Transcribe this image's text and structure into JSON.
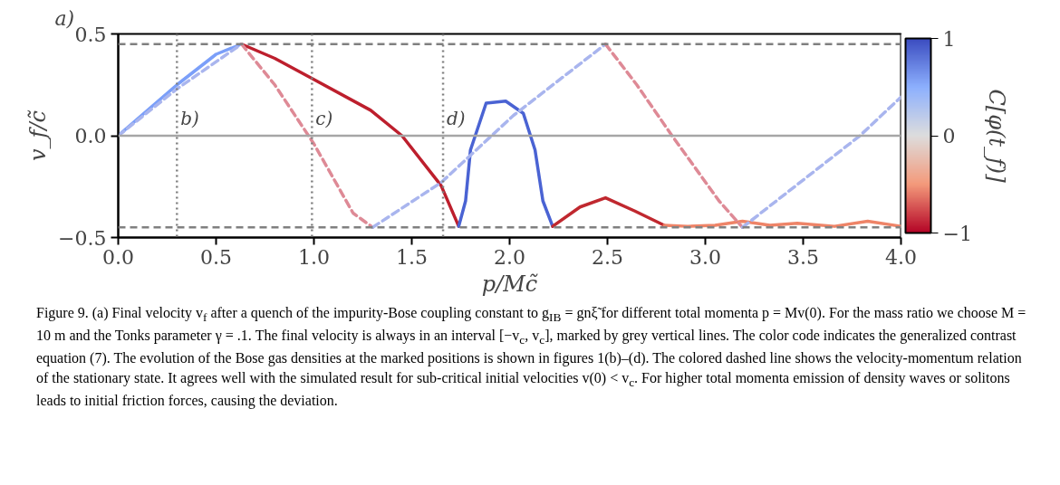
{
  "chart_data": {
    "type": "line",
    "title": "a)",
    "xlabel": "p/Mc̃",
    "ylabel": "v_f/c̃",
    "clabel": "C[φ(t_f)]",
    "xlim": [
      0,
      4
    ],
    "ylim": [
      -0.5,
      0.5
    ],
    "xticks": [
      {
        "value": 0,
        "label": "0.0"
      },
      0.5,
      {
        "value": 1,
        "label": "1.0"
      },
      1.5,
      {
        "value": 2,
        "label": "2.0"
      },
      2.5,
      {
        "value": 3,
        "label": "3.0"
      },
      3.5,
      {
        "value": 4,
        "label": "4.0"
      }
    ],
    "yticks": [
      {
        "value": -0.5,
        "label": "−0.5"
      },
      {
        "value": 0,
        "label": "0.0"
      },
      0.5
    ],
    "clim": [
      -1,
      1
    ],
    "cticks": [
      {
        "value": -1,
        "label": "−1"
      },
      0,
      1
    ],
    "grid": false,
    "series": [
      {
        "line_style": "solid",
        "color": "#7b9ff9",
        "x": [
          0,
          0.3,
          0.5,
          0.63
        ],
        "values": [
          0,
          0.25,
          0.4,
          0.45
        ]
      },
      {
        "line_style": "solid",
        "color": "#bd1f2d",
        "x": [
          0.63,
          0.8,
          0.98,
          1.29,
          1.45,
          1.65,
          1.74
        ],
        "values": [
          0.45,
          0.38,
          0.287,
          0.125,
          0,
          -0.245,
          -0.445
        ]
      },
      {
        "line_style": "solid",
        "color": "#4a63d3",
        "x": [
          1.74,
          1.775,
          1.8,
          1.88,
          1.98,
          2.07,
          2.13,
          2.17,
          2.22
        ],
        "values": [
          -0.445,
          -0.32,
          -0.07,
          0.16,
          0.17,
          0.11,
          -0.07,
          -0.32,
          -0.445
        ]
      },
      {
        "line_style": "solid",
        "color": "#c0282f",
        "x": [
          2.22,
          2.36,
          2.49,
          2.64,
          2.79
        ],
        "values": [
          -0.445,
          -0.35,
          -0.305,
          -0.37,
          -0.44
        ]
      },
      {
        "line_style": "solid",
        "color": "#ee8468",
        "x": [
          2.79,
          2.91,
          3.05,
          3.19,
          3.33,
          3.47,
          3.66,
          3.83,
          4.0
        ],
        "values": [
          -0.44,
          -0.445,
          -0.44,
          -0.42,
          -0.44,
          -0.43,
          -0.445,
          -0.42,
          -0.445
        ]
      },
      {
        "line_style": "dashed",
        "color": "#a9b5ee",
        "x": [
          0,
          0.3,
          0.63
        ],
        "values": [
          0,
          0.23,
          0.45
        ]
      },
      {
        "line_style": "dashed",
        "color": "#de8a96",
        "x": [
          0.63,
          0.8,
          1.0,
          1.2,
          1.3
        ],
        "values": [
          0.45,
          0.25,
          -0.04,
          -0.38,
          -0.45
        ]
      },
      {
        "line_style": "dashed",
        "color": "#a9b5ee",
        "x": [
          1.3,
          1.65,
          2.02,
          2.49
        ],
        "values": [
          -0.45,
          -0.23,
          0.1,
          0.45
        ]
      },
      {
        "line_style": "dashed",
        "color": "#de8a96",
        "x": [
          2.49,
          2.65,
          2.83,
          3.07,
          3.19
        ],
        "values": [
          0.45,
          0.25,
          0,
          -0.32,
          -0.45
        ]
      },
      {
        "line_style": "dashed",
        "color": "#a9b5ee",
        "x": [
          3.19,
          3.79,
          4.0
        ],
        "values": [
          -0.45,
          0,
          0.19
        ]
      }
    ],
    "ref_lines": [
      {
        "axis": "y",
        "value": 0.45,
        "color": "#808080",
        "line_style": "dashed"
      },
      {
        "axis": "y",
        "value": -0.45,
        "color": "#808080",
        "line_style": "dashed"
      },
      {
        "axis": "y",
        "value": 0,
        "color": "#a6a6a6",
        "line_style": "solid"
      },
      {
        "axis": "x",
        "value": 0.3,
        "label": "b)",
        "color": "#808080",
        "line_style": "dotted"
      },
      {
        "axis": "x",
        "value": 0.99,
        "label": "c)",
        "color": "#808080",
        "line_style": "dotted"
      },
      {
        "axis": "x",
        "value": 1.66,
        "label": "d)",
        "color": "#808080",
        "line_style": "dotted"
      }
    ],
    "annotations": [
      "Figure 9. (a) Final velocity v$_{f}$ after a quench of the impurity-Bose coupling constant to g$_{IB}$ = gnξ̃ for different total momenta p = Mv(0). For the mass ratio we choose M = 10 m and the Tonks parameter γ = .1. The final velocity is always in an interval [−v$_{c}$, v$_{c}$], marked by grey vertical lines. The color code indicates the generalized contrast equation (7). The evolution of the Bose gas densities at the marked positions is shown in figures 1(b)–(d). The colored dashed line shows the velocity-momentum relation of the stationary state. It agrees well with the simulated result for sub-critical initial velocities v(0) < v$_{c}$. For higher total momenta emission of density waves or solitons leads to initial friction forces, causing the deviation."
    ]
  }
}
